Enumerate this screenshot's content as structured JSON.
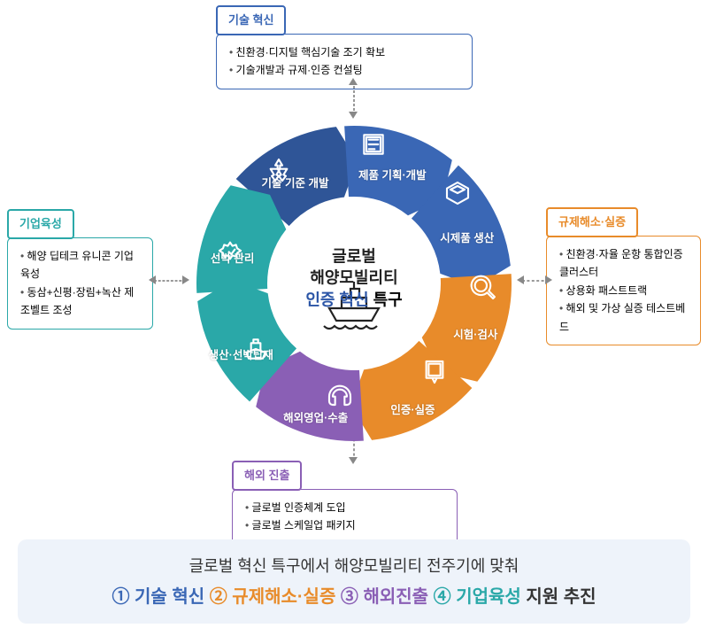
{
  "colors": {
    "blue": "#3a67b5",
    "navy": "#2f5597",
    "orange": "#e88b2a",
    "purple": "#8a5fb5",
    "teal": "#2aa8a8",
    "banner_bg": "#eef3fa"
  },
  "center": {
    "line1": "글로벌",
    "line2": "해양모빌리티",
    "line3_a": "인증 혁신",
    "line3_b": " 특구"
  },
  "segments": [
    {
      "label": "기술 기준 개발",
      "color": "#2f5597"
    },
    {
      "label": "제품 기획·개발",
      "color": "#3a67b5"
    },
    {
      "label": "시제품 생산",
      "color": "#3a67b5"
    },
    {
      "label": "시험·검사",
      "color": "#e88b2a"
    },
    {
      "label": "인증·실증",
      "color": "#e88b2a"
    },
    {
      "label": "해외영업·수출",
      "color": "#8a5fb5"
    },
    {
      "label": "생산·선박탑재",
      "color": "#2aa8a8"
    },
    {
      "label": "선박 관리",
      "color": "#2aa8a8"
    }
  ],
  "boxes": {
    "top": {
      "title": "기술 혁신",
      "items": [
        "친환경·디지털 핵심기술 조기 확보",
        "기술개발과 규제·인증 컨설팅"
      ]
    },
    "right": {
      "title": "규제해소·실증",
      "items": [
        "친환경·자율 운항 통합인증 클러스터",
        "상용화 패스트트랙",
        "해외 및 가상 실증 테스트베드"
      ]
    },
    "bottom": {
      "title": "해외 진출",
      "items": [
        "글로벌 인증체계 도입",
        "글로벌 스케일업 패키지"
      ]
    },
    "left": {
      "title": "기업육성",
      "items": [
        "해양 딥테크 유니콘 기업육성",
        "동삼+신평·장림+녹산 제조벨트 조성"
      ]
    }
  },
  "banner": {
    "line1": "글로벌 혁신 특구에서 해양모빌리티 전주기에 맞춰",
    "nums": [
      "①",
      "②",
      "③",
      "④"
    ],
    "keywords": [
      "기술 혁신",
      "규제해소·실증",
      "해외진출",
      "기업육성"
    ],
    "tail": " 지원 추진",
    "keyword_colors": [
      "#3a67b5",
      "#e88b2a",
      "#8a5fb5",
      "#2aa8a8"
    ]
  }
}
